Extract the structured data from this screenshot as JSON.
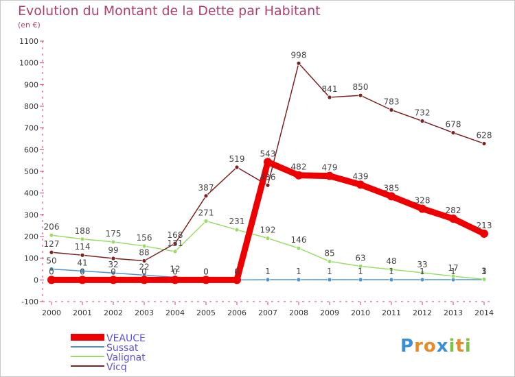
{
  "title": "Evolution du Montant de la Dette par Habitant",
  "unit": "(en €)",
  "logo": "Proxiti",
  "chart_data": {
    "type": "line",
    "title": "Evolution du Montant de la Dette par Habitant",
    "ylabel": "(en €)",
    "xlabel": "",
    "x": [
      "2000",
      "2001",
      "2002",
      "2003",
      "2004",
      "2005",
      "2006",
      "2007",
      "2008",
      "2009",
      "2010",
      "2011",
      "2012",
      "2013",
      "2014"
    ],
    "ylim": [
      -100,
      1100
    ],
    "yticks": [
      -100,
      0,
      100,
      200,
      300,
      400,
      500,
      600,
      700,
      800,
      900,
      1000,
      1100
    ],
    "grid": false,
    "legend_position": "bottom-left",
    "series": [
      {
        "name": "VEAUCE",
        "color": "#ee0000",
        "values": [
          0,
          0,
          0,
          0,
          0,
          0,
          0,
          543,
          482,
          479,
          439,
          385,
          328,
          282,
          213
        ],
        "labels": [
          "0",
          "0",
          "0",
          "0",
          "0",
          "0",
          "0",
          "543",
          "482",
          "479",
          "439",
          "385",
          "328",
          "282",
          "213"
        ]
      },
      {
        "name": "Sussat",
        "color": "#4f94cd",
        "values": [
          50,
          41,
          32,
          22,
          12,
          0,
          0,
          1,
          1,
          1,
          1,
          1,
          1,
          1,
          1
        ],
        "labels": [
          "50",
          "41",
          "32",
          "22",
          "12",
          "0",
          "0",
          "1",
          "1",
          "1",
          "1",
          "1",
          "1",
          "1",
          "1"
        ]
      },
      {
        "name": "Valignat",
        "color": "#99dd66",
        "values": [
          206,
          188,
          175,
          156,
          131,
          271,
          231,
          192,
          146,
          85,
          63,
          48,
          33,
          17,
          3
        ],
        "labels": [
          "206",
          "188",
          "175",
          "156",
          "131",
          "271",
          "231",
          "192",
          "146",
          "85",
          "63",
          "48",
          "33",
          "17",
          "3"
        ]
      },
      {
        "name": "Vicq",
        "color": "#7b2222",
        "values": [
          127,
          114,
          99,
          88,
          168,
          387,
          519,
          436,
          998,
          841,
          850,
          783,
          732,
          678,
          628
        ],
        "labels": [
          "127",
          "114",
          "99",
          "88",
          "168",
          "387",
          "519",
          "436",
          "998",
          "841",
          "850",
          "783",
          "732",
          "678",
          "628"
        ]
      }
    ]
  }
}
